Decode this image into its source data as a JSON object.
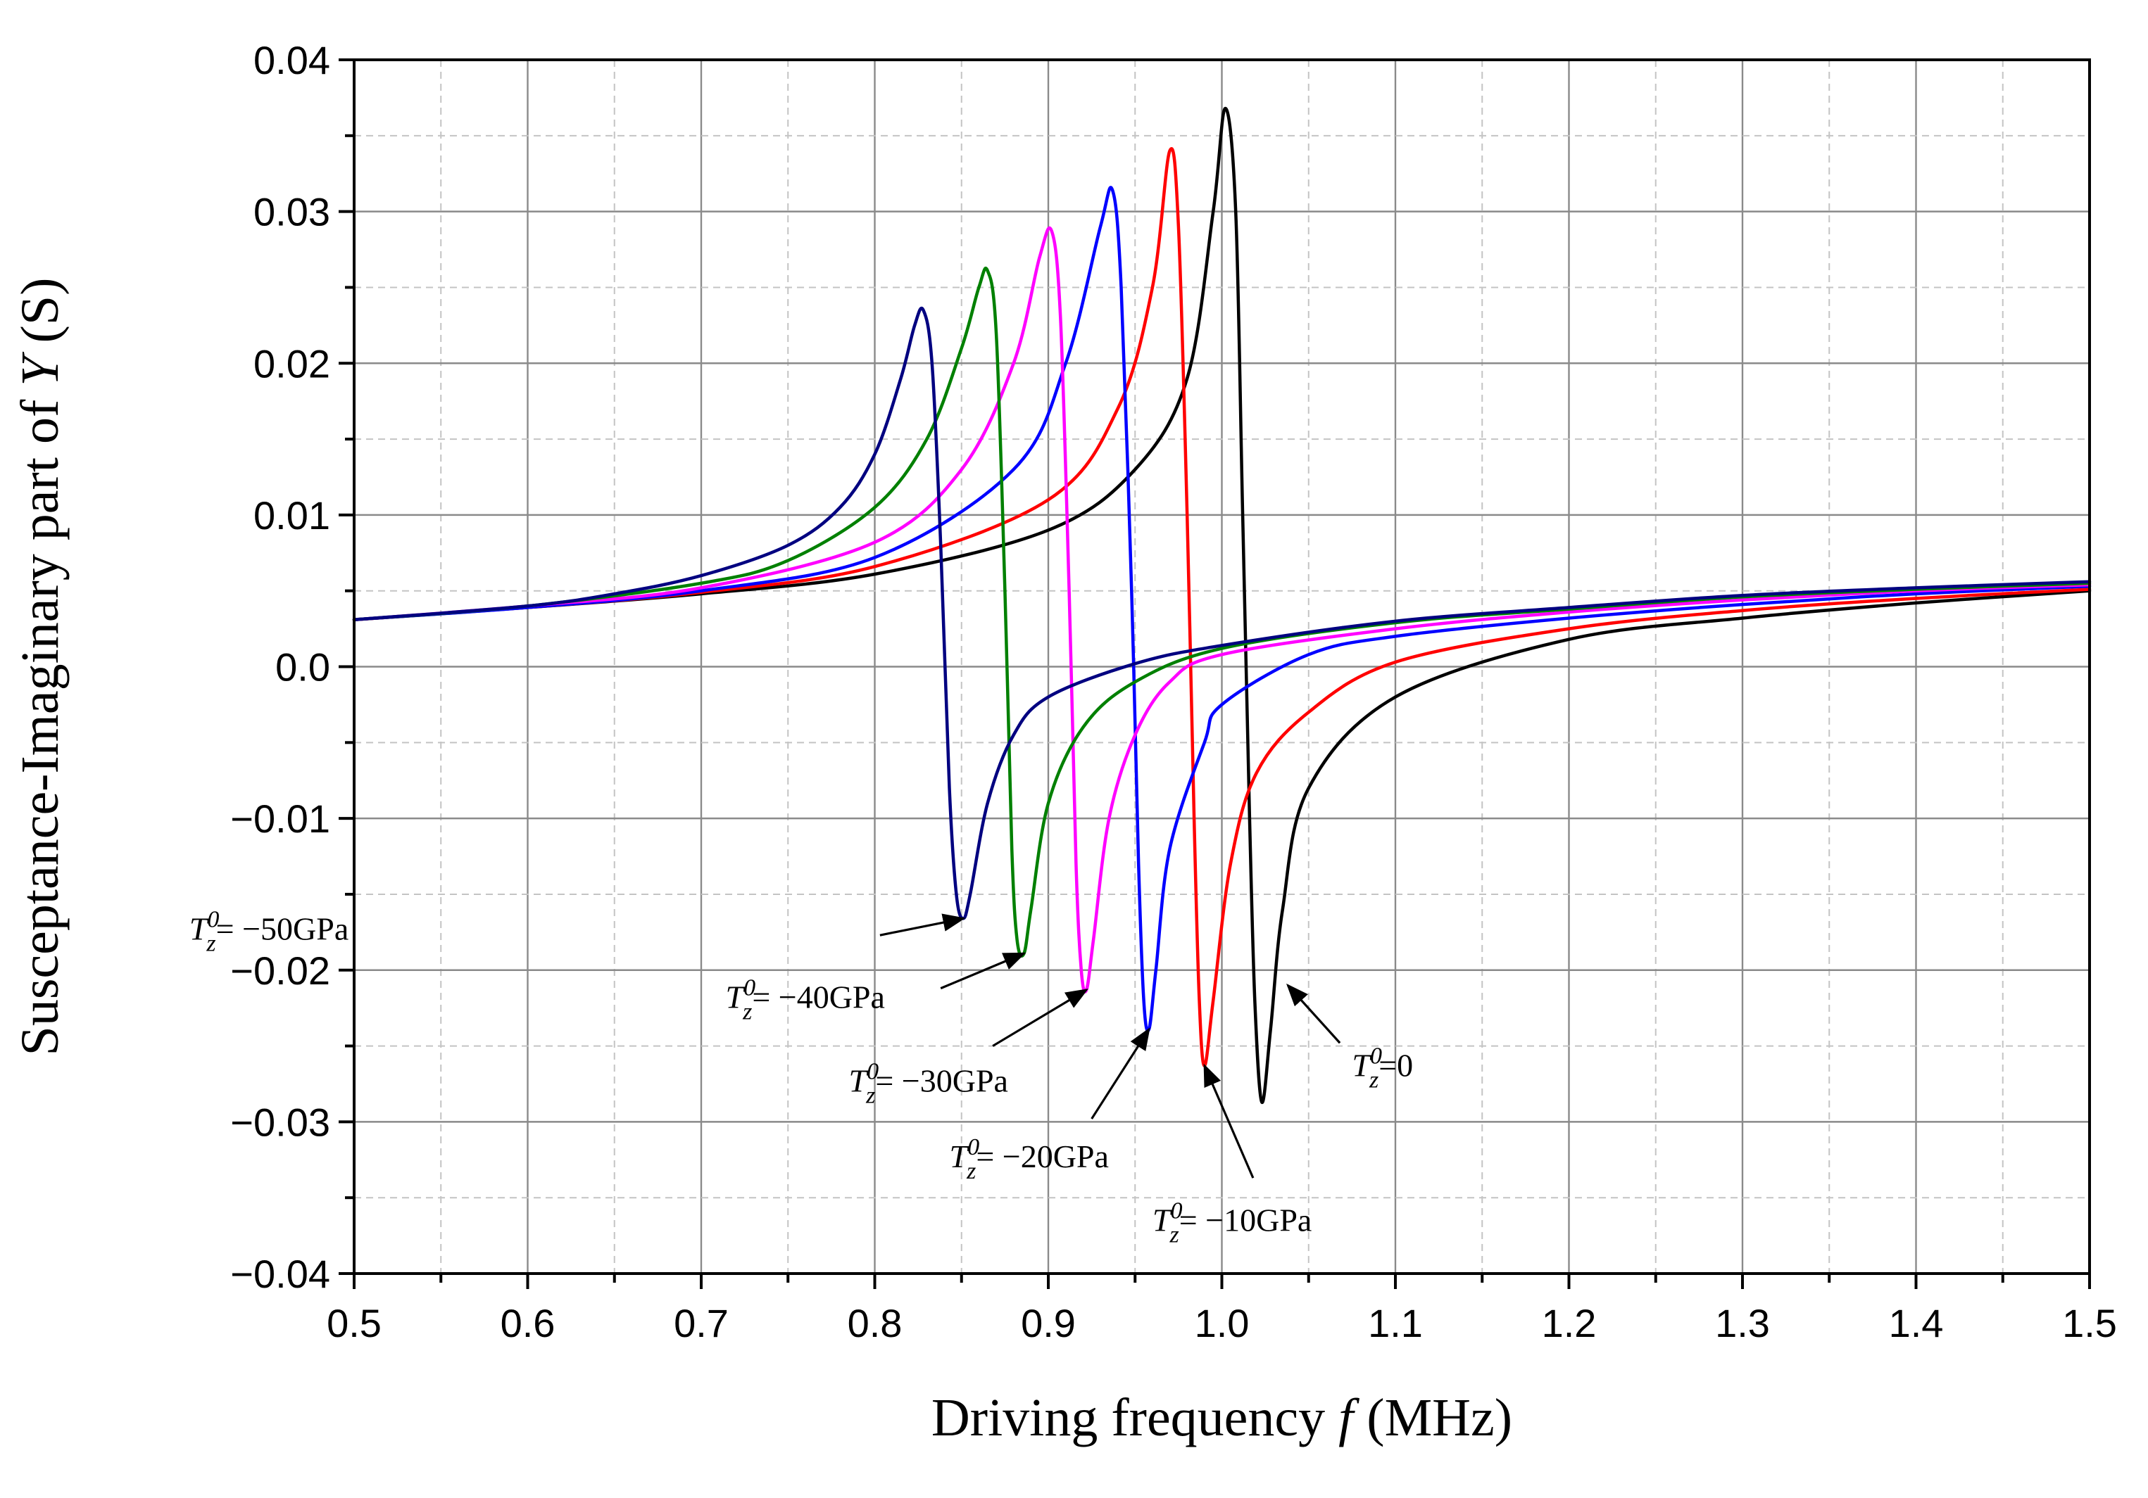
{
  "chart_data": {
    "type": "line",
    "title": "",
    "xlabel": {
      "prefix": "Driving frequency ",
      "var": "f",
      "suffix": " (MHz)"
    },
    "ylabel": {
      "prefix": "Susceptance-Imaginary part of ",
      "var": "Y",
      "suffix": " (S)"
    },
    "xlim": [
      0.5,
      1.5
    ],
    "ylim": [
      -0.04,
      0.04
    ],
    "grid": true,
    "x_ticks": [
      {
        "value": 0.5,
        "label": "0.5"
      },
      {
        "value": 0.6,
        "label": "0.6"
      },
      {
        "value": 0.7,
        "label": "0.7"
      },
      {
        "value": 0.8,
        "label": "0.8"
      },
      {
        "value": 0.9,
        "label": "0.9"
      },
      {
        "value": 1.0,
        "label": "1.0"
      },
      {
        "value": 1.1,
        "label": "1.1"
      },
      {
        "value": 1.2,
        "label": "1.2"
      },
      {
        "value": 1.3,
        "label": "1.3"
      },
      {
        "value": 1.4,
        "label": "1.4"
      },
      {
        "value": 1.5,
        "label": "1.5"
      }
    ],
    "y_ticks": [
      {
        "value": 0.04,
        "label": "0.04"
      },
      {
        "value": 0.03,
        "label": "0.03"
      },
      {
        "value": 0.02,
        "label": "0.02"
      },
      {
        "value": 0.01,
        "label": "0.01"
      },
      {
        "value": 0.0,
        "label": "0.0"
      },
      {
        "value": -0.01,
        "label": "−0.01"
      },
      {
        "value": -0.02,
        "label": "−0.02"
      },
      {
        "value": -0.03,
        "label": "−0.03"
      },
      {
        "value": -0.04,
        "label": "−0.04"
      }
    ],
    "series": [
      {
        "name": "T_z^0 = 0",
        "color": "#000000",
        "points": [
          [
            0.5,
            0.0031
          ],
          [
            0.6,
            0.0039
          ],
          [
            0.7,
            0.0048
          ],
          [
            0.8,
            0.0061
          ],
          [
            0.9,
            0.009
          ],
          [
            0.95,
            0.013
          ],
          [
            0.98,
            0.019
          ],
          [
            0.995,
            0.03
          ],
          [
            1.002,
            0.0368
          ],
          [
            1.008,
            0.03
          ],
          [
            1.012,
            0.01
          ],
          [
            1.016,
            -0.01
          ],
          [
            1.019,
            -0.022
          ],
          [
            1.023,
            -0.0287
          ],
          [
            1.028,
            -0.024
          ],
          [
            1.035,
            -0.016
          ],
          [
            1.05,
            -0.008
          ],
          [
            1.1,
            -0.002
          ],
          [
            1.2,
            0.0018
          ],
          [
            1.3,
            0.0032
          ],
          [
            1.4,
            0.0042
          ],
          [
            1.5,
            0.005
          ]
        ]
      },
      {
        "name": "T_z^0 = −10GPa",
        "color": "#ff0000",
        "points": [
          [
            0.5,
            0.0031
          ],
          [
            0.6,
            0.0039
          ],
          [
            0.7,
            0.0049
          ],
          [
            0.8,
            0.0066
          ],
          [
            0.9,
            0.011
          ],
          [
            0.94,
            0.017
          ],
          [
            0.96,
            0.025
          ],
          [
            0.97,
            0.034
          ],
          [
            0.975,
            0.029
          ],
          [
            0.98,
            0.01
          ],
          [
            0.984,
            -0.01
          ],
          [
            0.987,
            -0.022
          ],
          [
            0.99,
            -0.0263
          ],
          [
            0.995,
            -0.022
          ],
          [
            1.005,
            -0.013
          ],
          [
            1.02,
            -0.007
          ],
          [
            1.05,
            -0.003
          ],
          [
            1.1,
            0.0003
          ],
          [
            1.2,
            0.0025
          ],
          [
            1.3,
            0.0037
          ],
          [
            1.4,
            0.0045
          ],
          [
            1.5,
            0.0051
          ]
        ]
      },
      {
        "name": "T_z^0 = −20GPa",
        "color": "#0000ff",
        "points": [
          [
            0.5,
            0.0031
          ],
          [
            0.6,
            0.0039
          ],
          [
            0.7,
            0.005
          ],
          [
            0.8,
            0.0072
          ],
          [
            0.88,
            0.013
          ],
          [
            0.91,
            0.02
          ],
          [
            0.93,
            0.029
          ],
          [
            0.937,
            0.0314
          ],
          [
            0.942,
            0.025
          ],
          [
            0.948,
            0.005
          ],
          [
            0.952,
            -0.013
          ],
          [
            0.955,
            -0.022
          ],
          [
            0.958,
            -0.0239
          ],
          [
            0.962,
            -0.02
          ],
          [
            0.97,
            -0.012
          ],
          [
            0.99,
            -0.005
          ],
          [
            1.0,
            -0.0025
          ],
          [
            1.05,
            0.0008
          ],
          [
            1.1,
            0.002
          ],
          [
            1.2,
            0.0032
          ],
          [
            1.3,
            0.0041
          ],
          [
            1.4,
            0.0048
          ],
          [
            1.5,
            0.0053
          ]
        ]
      },
      {
        "name": "T_z^0 = −30GPa",
        "color": "#ff00ff",
        "points": [
          [
            0.5,
            0.0031
          ],
          [
            0.6,
            0.004
          ],
          [
            0.7,
            0.0052
          ],
          [
            0.8,
            0.0082
          ],
          [
            0.85,
            0.013
          ],
          [
            0.88,
            0.02
          ],
          [
            0.895,
            0.027
          ],
          [
            0.902,
            0.0287
          ],
          [
            0.907,
            0.023
          ],
          [
            0.912,
            0.005
          ],
          [
            0.916,
            -0.013
          ],
          [
            0.919,
            -0.02
          ],
          [
            0.922,
            -0.0213
          ],
          [
            0.926,
            -0.018
          ],
          [
            0.935,
            -0.01
          ],
          [
            0.95,
            -0.0045
          ],
          [
            0.97,
            -0.001
          ],
          [
            1.0,
            0.0008
          ],
          [
            1.1,
            0.0025
          ],
          [
            1.2,
            0.0036
          ],
          [
            1.3,
            0.0044
          ],
          [
            1.4,
            0.005
          ],
          [
            1.5,
            0.0054
          ]
        ]
      },
      {
        "name": "T_z^0 = −40GPa",
        "color": "#008000",
        "points": [
          [
            0.5,
            0.0031
          ],
          [
            0.6,
            0.004
          ],
          [
            0.7,
            0.0055
          ],
          [
            0.75,
            0.007
          ],
          [
            0.8,
            0.0105
          ],
          [
            0.83,
            0.015
          ],
          [
            0.85,
            0.021
          ],
          [
            0.86,
            0.025
          ],
          [
            0.865,
            0.0261
          ],
          [
            0.87,
            0.022
          ],
          [
            0.875,
            0.005
          ],
          [
            0.879,
            -0.012
          ],
          [
            0.882,
            -0.018
          ],
          [
            0.886,
            -0.0189
          ],
          [
            0.89,
            -0.016
          ],
          [
            0.9,
            -0.009
          ],
          [
            0.92,
            -0.004
          ],
          [
            0.95,
            -0.001
          ],
          [
            1.0,
            0.0012
          ],
          [
            1.1,
            0.0029
          ],
          [
            1.2,
            0.0038
          ],
          [
            1.3,
            0.0046
          ],
          [
            1.4,
            0.0051
          ],
          [
            1.5,
            0.0055
          ]
        ]
      },
      {
        "name": "T_z^0 = −50GPa",
        "color": "#000080",
        "points": [
          [
            0.5,
            0.0031
          ],
          [
            0.6,
            0.004
          ],
          [
            0.65,
            0.0048
          ],
          [
            0.7,
            0.006
          ],
          [
            0.75,
            0.008
          ],
          [
            0.78,
            0.0105
          ],
          [
            0.8,
            0.014
          ],
          [
            0.815,
            0.019
          ],
          [
            0.823,
            0.0225
          ],
          [
            0.828,
            0.0235
          ],
          [
            0.833,
            0.02
          ],
          [
            0.838,
            0.008
          ],
          [
            0.843,
            -0.008
          ],
          [
            0.847,
            -0.015
          ],
          [
            0.851,
            -0.0166
          ],
          [
            0.855,
            -0.015
          ],
          [
            0.865,
            -0.009
          ],
          [
            0.88,
            -0.0045
          ],
          [
            0.9,
            -0.002
          ],
          [
            0.95,
            0.0002
          ],
          [
            1.0,
            0.0014
          ],
          [
            1.1,
            0.003
          ],
          [
            1.2,
            0.0039
          ],
          [
            1.3,
            0.0047
          ],
          [
            1.4,
            0.0052
          ],
          [
            1.5,
            0.0056
          ]
        ]
      }
    ],
    "annotations": [
      {
        "id": "ann-50",
        "lead": "T",
        "sub": "z",
        "sup": "0",
        "rest": "= −50GPa",
        "target": [
          0.851,
          -0.0166
        ],
        "text_anchor": [
          0.405,
          -0.018
        ],
        "arrow_from": [
          0.803,
          -0.0177
        ]
      },
      {
        "id": "ann-40",
        "lead": "T",
        "sub": "z",
        "sup": "0",
        "rest": "= −40GPa",
        "target": [
          0.886,
          -0.0189
        ],
        "text_anchor": [
          0.714,
          -0.0225
        ],
        "arrow_from": [
          0.838,
          -0.0212
        ]
      },
      {
        "id": "ann-30",
        "lead": "T",
        "sub": "z",
        "sup": "0",
        "rest": "= −30GPa",
        "target": [
          0.922,
          -0.0213
        ],
        "text_anchor": [
          0.785,
          -0.028
        ],
        "arrow_from": [
          0.868,
          -0.025
        ]
      },
      {
        "id": "ann-20",
        "lead": "T",
        "sub": "z",
        "sup": "0",
        "rest": "= −20GPa",
        "target": [
          0.958,
          -0.0239
        ],
        "text_anchor": [
          0.843,
          -0.033
        ],
        "arrow_from": [
          0.925,
          -0.0298
        ]
      },
      {
        "id": "ann-10",
        "lead": "T",
        "sub": "z",
        "sup": "0",
        "rest": "= −10GPa",
        "target": [
          0.99,
          -0.0263
        ],
        "text_anchor": [
          0.96,
          -0.0372
        ],
        "arrow_from": [
          1.018,
          -0.0337
        ]
      },
      {
        "id": "ann-0",
        "lead": "T",
        "sub": "z",
        "sup": "0",
        "rest": "=0",
        "target": [
          1.038,
          -0.021
        ],
        "text_anchor": [
          1.075,
          -0.027
        ],
        "arrow_from": [
          1.068,
          -0.0248
        ]
      }
    ]
  }
}
